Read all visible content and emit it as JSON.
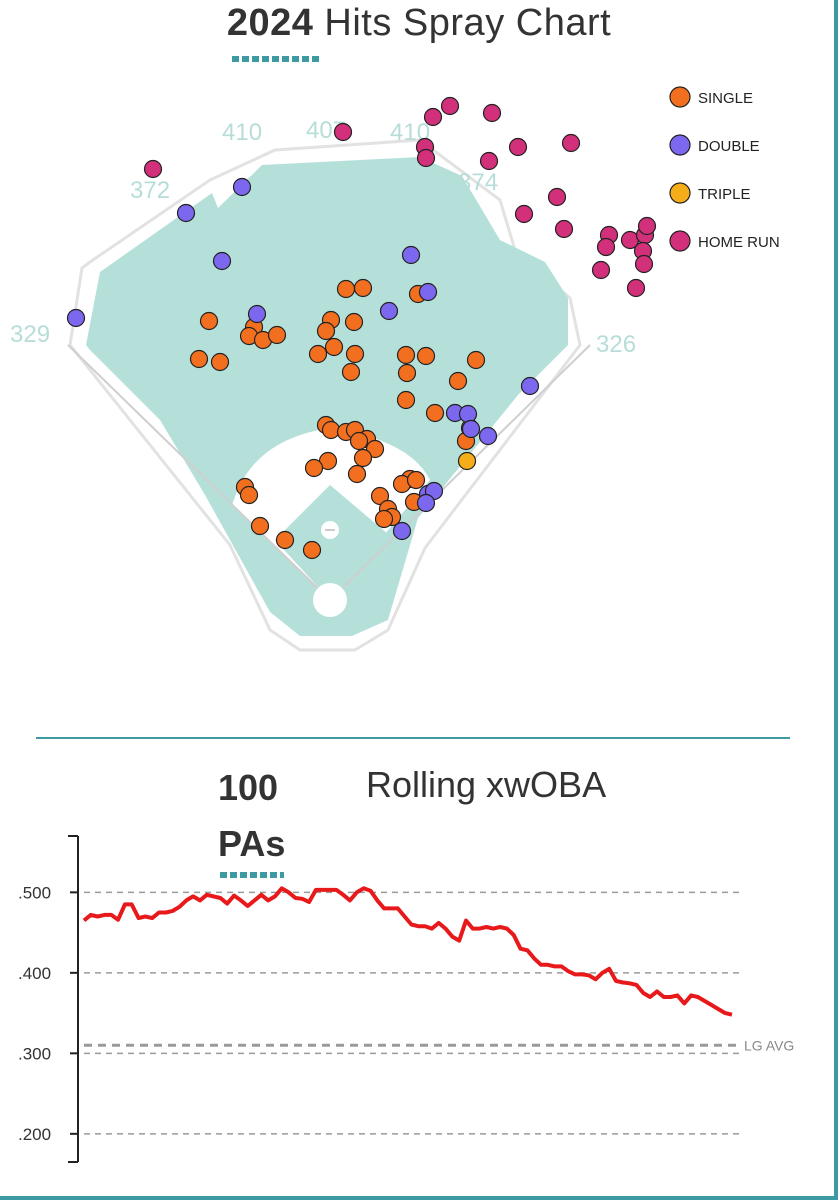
{
  "spray": {
    "title_year": "2024",
    "title_rest": "Hits Spray Chart",
    "distances": [
      "372",
      "410",
      "407",
      "410",
      "374",
      "329",
      "326"
    ],
    "legend": [
      {
        "label": "SINGLE",
        "color": "#f36f20"
      },
      {
        "label": "DOUBLE",
        "color": "#7b68ee"
      },
      {
        "label": "TRIPLE",
        "color": "#f6ad1a"
      },
      {
        "label": "HOME RUN",
        "color": "#d2307a"
      }
    ],
    "colors": {
      "grass": "#b5e0da",
      "infield": "#ffffff",
      "outline": "#dddddd"
    }
  },
  "rolling": {
    "pa_label": "100 PAs",
    "title": "Rolling xwOBA",
    "lg_avg_label": "LG AVG",
    "line_color": "#e8191b"
  },
  "chart_data": [
    {
      "type": "scatter",
      "title": "2024 Hits Spray Chart",
      "series": [
        {
          "name": "SINGLE",
          "points": [
            [
              346,
              289
            ],
            [
              363,
              288
            ],
            [
              418,
              294
            ],
            [
              209,
              321
            ],
            [
              254,
              327
            ],
            [
              249,
              336
            ],
            [
              263,
              340
            ],
            [
              277,
              335
            ],
            [
              331,
              320
            ],
            [
              354,
              322
            ],
            [
              326,
              331
            ],
            [
              199,
              359
            ],
            [
              220,
              362
            ],
            [
              318,
              354
            ],
            [
              334,
              347
            ],
            [
              355,
              354
            ],
            [
              406,
              355
            ],
            [
              426,
              356
            ],
            [
              351,
              372
            ],
            [
              407,
              373
            ],
            [
              476,
              360
            ],
            [
              458,
              381
            ],
            [
              406,
              400
            ],
            [
              435,
              413
            ],
            [
              326,
              425
            ],
            [
              331,
              430
            ],
            [
              346,
              432
            ],
            [
              355,
              430
            ],
            [
              367,
              439
            ],
            [
              359,
              441
            ],
            [
              375,
              449
            ],
            [
              363,
              458
            ],
            [
              328,
              461
            ],
            [
              357,
              474
            ],
            [
              314,
              468
            ],
            [
              410,
              479
            ],
            [
              402,
              484
            ],
            [
              416,
              480
            ],
            [
              380,
              496
            ],
            [
              245,
              487
            ],
            [
              249,
              495
            ],
            [
              414,
              502
            ],
            [
              388,
              509
            ],
            [
              392,
              517
            ],
            [
              384,
              519
            ],
            [
              260,
              526
            ],
            [
              285,
              540
            ],
            [
              312,
              550
            ],
            [
              466,
              441
            ],
            [
              470,
              428
            ]
          ]
        },
        {
          "name": "DOUBLE",
          "points": [
            [
              76,
              318
            ],
            [
              186,
              213
            ],
            [
              242,
              187
            ],
            [
              222,
              261
            ],
            [
              257,
              314
            ],
            [
              411,
              255
            ],
            [
              428,
              292
            ],
            [
              389,
              311
            ],
            [
              530,
              386
            ],
            [
              455,
              413
            ],
            [
              468,
              414
            ],
            [
              471,
              429
            ],
            [
              488,
              436
            ],
            [
              428,
              494
            ],
            [
              434,
              491
            ],
            [
              426,
              503
            ],
            [
              402,
              531
            ]
          ]
        },
        {
          "name": "TRIPLE",
          "points": [
            [
              467,
              461
            ]
          ]
        },
        {
          "name": "HOME RUN",
          "points": [
            [
              153,
              169
            ],
            [
              343,
              132
            ],
            [
              433,
              117
            ],
            [
              450,
              106
            ],
            [
              492,
              113
            ],
            [
              425,
              147
            ],
            [
              426,
              158
            ],
            [
              489,
              161
            ],
            [
              518,
              147
            ],
            [
              571,
              143
            ],
            [
              524,
              214
            ],
            [
              557,
              197
            ],
            [
              564,
              229
            ],
            [
              609,
              235
            ],
            [
              606,
              247
            ],
            [
              630,
              240
            ],
            [
              645,
              235
            ],
            [
              647,
              226
            ],
            [
              643,
              251
            ],
            [
              644,
              264
            ],
            [
              601,
              270
            ],
            [
              636,
              288
            ]
          ]
        }
      ]
    },
    {
      "type": "line",
      "title": "Rolling xwOBA",
      "xlabel": "PAs",
      "ylim": [
        0.165,
        0.57
      ],
      "yticks": [
        ".500",
        ".400",
        ".300",
        ".200"
      ],
      "reference_line": {
        "label": "LG AVG",
        "value": 0.31
      },
      "series": [
        {
          "name": "Rolling xwOBA",
          "values": [
            0.465,
            0.472,
            0.47,
            0.472,
            0.472,
            0.466,
            0.485,
            0.485,
            0.468,
            0.47,
            0.468,
            0.475,
            0.475,
            0.477,
            0.482,
            0.49,
            0.495,
            0.49,
            0.497,
            0.495,
            0.493,
            0.486,
            0.496,
            0.49,
            0.483,
            0.49,
            0.497,
            0.49,
            0.495,
            0.505,
            0.5,
            0.493,
            0.492,
            0.488,
            0.503,
            0.503,
            0.503,
            0.503,
            0.497,
            0.49,
            0.5,
            0.505,
            0.502,
            0.49,
            0.48,
            0.48,
            0.48,
            0.47,
            0.46,
            0.458,
            0.458,
            0.455,
            0.462,
            0.455,
            0.445,
            0.44,
            0.465,
            0.455,
            0.455,
            0.457,
            0.455,
            0.457,
            0.455,
            0.447,
            0.43,
            0.428,
            0.418,
            0.41,
            0.41,
            0.408,
            0.408,
            0.402,
            0.398,
            0.398,
            0.397,
            0.392,
            0.4,
            0.405,
            0.39,
            0.388,
            0.387,
            0.385,
            0.375,
            0.37,
            0.377,
            0.37,
            0.37,
            0.372,
            0.362,
            0.372,
            0.37,
            0.365,
            0.36,
            0.355,
            0.35,
            0.348
          ]
        }
      ]
    }
  ]
}
